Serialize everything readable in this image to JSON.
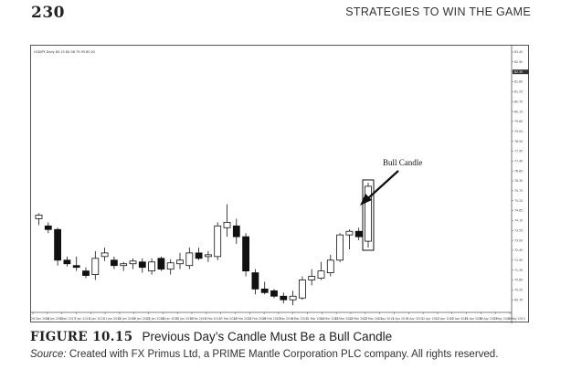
{
  "header": {
    "page_number": "230",
    "running_title": "STRATEGIES TO WIN THE GAME"
  },
  "figure": {
    "label": "FIGURE 10.15",
    "caption": "Previous Day’s Candle Must Be a Bull Candle",
    "source_label": "Source:",
    "source_text": " Created with FX Primus Ltd, a PRIME Mantle Corporation PLC company. All rights reserved."
  },
  "chart_data": {
    "type": "candlestick",
    "title": "USDJPY,Daily  80.15  80.08  79.95  80.02",
    "annotation": "Bull Candle",
    "ylim": [
      69.0,
      83.6
    ],
    "y_ticks": [
      83.45,
      82.9,
      82.35,
      81.8,
      81.25,
      80.7,
      80.15,
      79.6,
      79.05,
      78.5,
      77.95,
      77.4,
      76.85,
      76.3,
      75.75,
      75.2,
      74.65,
      74.1,
      73.55,
      73.0,
      72.45,
      71.9,
      71.35,
      70.8,
      70.25,
      69.7
    ],
    "current_price": "82.35",
    "x_ticks": [
      "26 Dec 2012",
      "18 Jan 2013",
      "8 Jan 2013",
      "7 Jan 2013",
      "4 Jan 2013",
      "11 Jan 2013",
      "15 Jan 2013",
      "19 Jan 2013",
      "23 Jan 2013",
      "28 Jan 2013",
      "31 Jan 2013",
      "5 Feb 2013",
      "8 Feb 2013",
      "13 Feb 2013",
      "18 Feb 2013",
      "21 Feb 2013",
      "26 Feb 2013",
      "1 Mar 2013",
      "6 Mar 2013",
      "11 Mar 2013",
      "14 Mar 2013",
      "19 Mar 2013",
      "22 Mar 2013",
      "27 Mar 2013",
      "1 Apr 2013",
      "4 Apr 2013",
      "9 Apr 2013",
      "12 Apr 2013",
      "17 Apr 2013",
      "22 Apr 2013",
      "25 Apr 2013",
      "30 Apr 2013",
      "3 May 2013",
      "8 May 2013"
    ],
    "candles": [
      {
        "o": 74.2,
        "h": 74.5,
        "l": 73.85,
        "c": 74.4
      },
      {
        "o": 73.8,
        "h": 74.0,
        "l": 73.4,
        "c": 73.6
      },
      {
        "o": 73.6,
        "h": 73.7,
        "l": 71.6,
        "c": 71.9
      },
      {
        "o": 71.9,
        "h": 72.1,
        "l": 71.55,
        "c": 71.7
      },
      {
        "o": 71.6,
        "h": 72.1,
        "l": 71.3,
        "c": 71.5
      },
      {
        "o": 71.3,
        "h": 71.5,
        "l": 70.9,
        "c": 71.05
      },
      {
        "o": 71.1,
        "h": 72.4,
        "l": 70.8,
        "c": 72.0
      },
      {
        "o": 72.1,
        "h": 72.6,
        "l": 71.85,
        "c": 72.3
      },
      {
        "o": 71.9,
        "h": 72.1,
        "l": 71.4,
        "c": 71.6
      },
      {
        "o": 71.6,
        "h": 71.8,
        "l": 71.3,
        "c": 71.7
      },
      {
        "o": 71.7,
        "h": 72.0,
        "l": 71.4,
        "c": 71.85
      },
      {
        "o": 71.8,
        "h": 72.0,
        "l": 71.2,
        "c": 71.5
      },
      {
        "o": 71.3,
        "h": 72.0,
        "l": 71.1,
        "c": 71.8
      },
      {
        "o": 72.0,
        "h": 72.1,
        "l": 71.3,
        "c": 71.4
      },
      {
        "o": 71.4,
        "h": 71.95,
        "l": 71.1,
        "c": 71.75
      },
      {
        "o": 71.7,
        "h": 72.3,
        "l": 71.4,
        "c": 71.9
      },
      {
        "o": 71.6,
        "h": 72.6,
        "l": 71.4,
        "c": 72.3
      },
      {
        "o": 72.3,
        "h": 72.6,
        "l": 71.9,
        "c": 72.0
      },
      {
        "o": 72.1,
        "h": 72.4,
        "l": 71.8,
        "c": 72.2
      },
      {
        "o": 72.1,
        "h": 74.0,
        "l": 71.9,
        "c": 73.8
      },
      {
        "o": 73.7,
        "h": 75.0,
        "l": 73.2,
        "c": 74.0
      },
      {
        "o": 73.8,
        "h": 74.2,
        "l": 72.8,
        "c": 73.2
      },
      {
        "o": 73.2,
        "h": 73.4,
        "l": 71.0,
        "c": 71.3
      },
      {
        "o": 71.2,
        "h": 71.4,
        "l": 70.0,
        "c": 70.3
      },
      {
        "o": 70.3,
        "h": 70.7,
        "l": 70.0,
        "c": 70.1
      },
      {
        "o": 70.2,
        "h": 70.3,
        "l": 69.8,
        "c": 69.9
      },
      {
        "o": 69.9,
        "h": 70.1,
        "l": 69.5,
        "c": 69.7
      },
      {
        "o": 69.7,
        "h": 70.2,
        "l": 69.4,
        "c": 69.9
      },
      {
        "o": 69.8,
        "h": 71.0,
        "l": 69.7,
        "c": 70.8
      },
      {
        "o": 70.8,
        "h": 71.4,
        "l": 70.5,
        "c": 71.0
      },
      {
        "o": 70.9,
        "h": 71.8,
        "l": 70.8,
        "c": 71.3
      },
      {
        "o": 71.2,
        "h": 72.2,
        "l": 71.0,
        "c": 71.9
      },
      {
        "o": 71.9,
        "h": 73.4,
        "l": 71.8,
        "c": 73.3
      },
      {
        "o": 73.3,
        "h": 73.6,
        "l": 72.5,
        "c": 73.5
      },
      {
        "o": 73.5,
        "h": 73.7,
        "l": 73.0,
        "c": 73.2
      },
      {
        "o": 72.95,
        "h": 76.2,
        "l": 72.6,
        "c": 76.0
      }
    ],
    "highlight_index": 35
  }
}
